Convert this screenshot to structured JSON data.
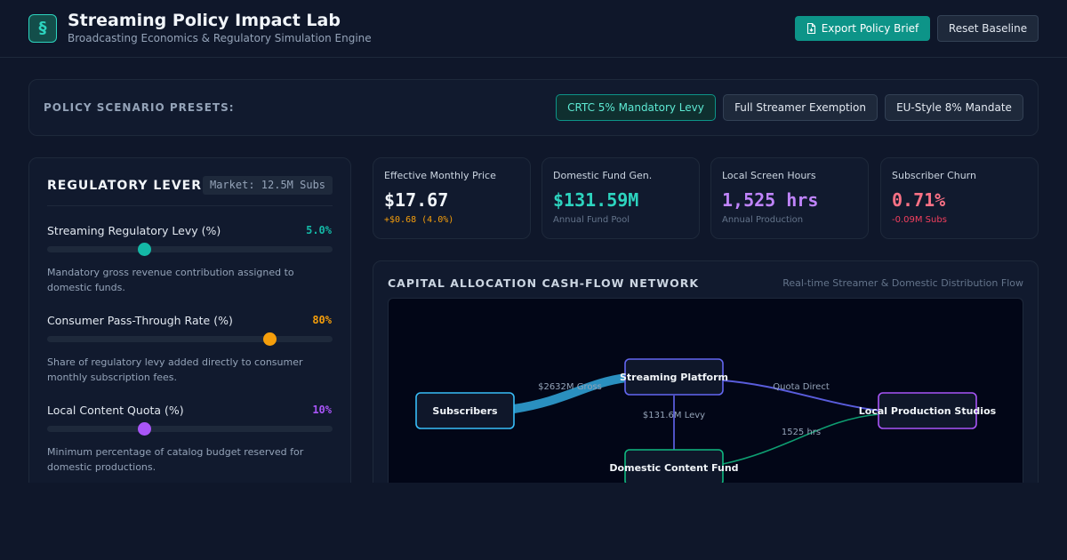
{
  "header": {
    "logo_glyph": "§",
    "title": "Streaming Policy Impact Lab",
    "subtitle": "Broadcasting Economics & Regulatory Simulation Engine",
    "export_label": "Export Policy Brief",
    "export_icon": "document-export-icon",
    "reset_label": "Reset Baseline"
  },
  "presets": {
    "label": "POLICY SCENARIO PRESETS:",
    "items": [
      {
        "label": "CRTC 5% Mandatory Levy",
        "active": true
      },
      {
        "label": "Full Streamer Exemption",
        "active": false
      },
      {
        "label": "EU-Style 8% Mandate",
        "active": false
      }
    ]
  },
  "levers": {
    "title": "REGULATORY LEVERS",
    "market_badge": "Market: 12.5M Subs",
    "items": [
      {
        "label": "Streaming Regulatory Levy (%)",
        "value": "5.0%",
        "fraction": 0.34,
        "color": "#14b8a6",
        "description": "Mandatory gross revenue contribution assigned to domestic funds."
      },
      {
        "label": "Consumer Pass-Through Rate (%)",
        "value": "80%",
        "fraction": 0.78,
        "color": "#f59e0b",
        "description": "Share of regulatory levy added directly to consumer monthly subscription fees."
      },
      {
        "label": "Local Content Quota (%)",
        "value": "10%",
        "fraction": 0.34,
        "color": "#a855f7",
        "description": "Minimum percentage of catalog budget reserved for domestic productions."
      }
    ]
  },
  "kpis": [
    {
      "label": "Effective Monthly Price",
      "value": "$17.67",
      "sub": "+$0.68 (4.0%)",
      "value_color": "#f1f5f9",
      "sub_color": "#f59e0b",
      "sub_mono": true
    },
    {
      "label": "Domestic Fund Gen.",
      "value": "$131.59M",
      "sub": "Annual Fund Pool",
      "value_color": "#2dd4bf",
      "sub_color": "#64748b",
      "sub_mono": false
    },
    {
      "label": "Local Screen Hours",
      "value": "1,525 hrs",
      "sub": "Annual Production",
      "value_color": "#c084fc",
      "sub_color": "#64748b",
      "sub_mono": false
    },
    {
      "label": "Subscriber Churn",
      "value": "0.71%",
      "sub": "-0.09M Subs",
      "value_color": "#fb7185",
      "sub_color": "#f43f5e",
      "sub_mono": false
    }
  ],
  "flow": {
    "title": "CAPITAL ALLOCATION CASH-FLOW NETWORK",
    "subtitle": "Real-time Streamer & Domestic Distribution Flow",
    "nodes": {
      "subscribers": {
        "label": "Subscribers",
        "color": "#38bdf8"
      },
      "platform": {
        "label": "Streaming Platform",
        "color": "#6366f1"
      },
      "studios": {
        "label": "Local Production Studios",
        "color": "#a855f7"
      },
      "fund": {
        "label": "Domestic Content Fund",
        "color": "#10b981"
      }
    },
    "edge_labels": {
      "gross": "$2632M Gross",
      "quota": "Quota Direct",
      "levy": "$131.6M Levy",
      "hours": "1525 hrs"
    }
  }
}
